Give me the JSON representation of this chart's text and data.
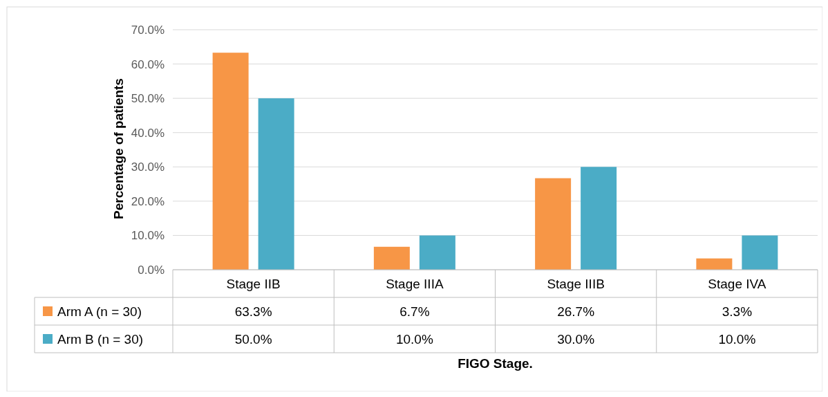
{
  "chart_data": {
    "type": "bar",
    "xlabel": "FIGO Stage.",
    "ylabel": "Percentage of patients",
    "categories": [
      "Stage IIB",
      "Stage IIIA",
      "Stage IIIB",
      "Stage IVA"
    ],
    "series": [
      {
        "name": "Arm A (n = 30)",
        "color": "#f79646",
        "values": [
          63.3,
          6.7,
          26.7,
          3.3
        ],
        "value_labels": [
          "63.3%",
          "6.7%",
          "26.7%",
          "3.3%"
        ]
      },
      {
        "name": "Arm B (n = 30)",
        "color": "#4bacc6",
        "values": [
          50.0,
          10.0,
          30.0,
          10.0
        ],
        "value_labels": [
          "50.0%",
          "10.0%",
          "30.0%",
          "10.0%"
        ]
      }
    ],
    "ylim": [
      0,
      70
    ],
    "yticks": [
      {
        "value": 0,
        "label": "0.0%"
      },
      {
        "value": 10,
        "label": "10.0%"
      },
      {
        "value": 20,
        "label": "20.0%"
      },
      {
        "value": 30,
        "label": "30.0%"
      },
      {
        "value": 40,
        "label": "40.0%"
      },
      {
        "value": 50,
        "label": "50.0%"
      },
      {
        "value": 60,
        "label": "60.0%"
      },
      {
        "value": 70,
        "label": "70.0%"
      }
    ],
    "grid": "y",
    "legend": "bottom"
  }
}
